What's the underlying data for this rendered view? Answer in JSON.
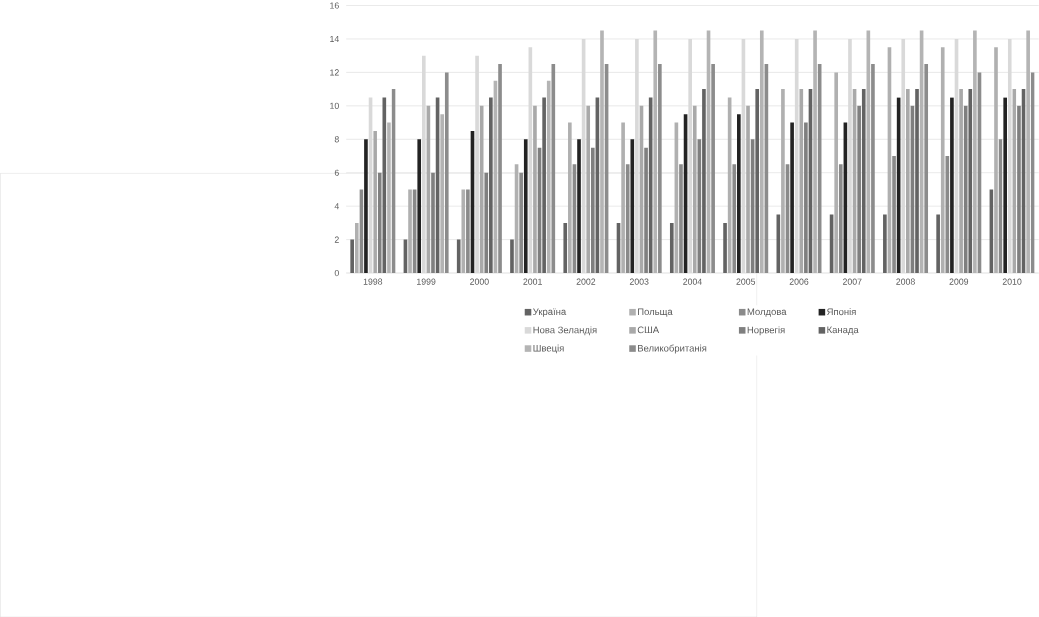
{
  "chart_data": {
    "type": "bar",
    "categories": [
      "1998",
      "1999",
      "2000",
      "2001",
      "2002",
      "2003",
      "2004",
      "2005",
      "2006",
      "2007",
      "2008",
      "2009",
      "2010"
    ],
    "series": [
      {
        "name": "Україна",
        "color": "#636363",
        "values": [
          2,
          2,
          2,
          2,
          3,
          3,
          3,
          3,
          3.5,
          3.5,
          3.5,
          3.5,
          5
        ]
      },
      {
        "name": "Польща",
        "color": "#b0b0b0",
        "values": [
          3,
          5,
          5,
          6.5,
          9,
          9,
          9,
          10.5,
          11,
          12,
          13.5,
          13.5,
          13.5
        ]
      },
      {
        "name": "Молдова",
        "color": "#8a8a8a",
        "values": [
          5,
          5,
          5,
          6,
          6.5,
          6.5,
          6.5,
          6.5,
          6.5,
          6.5,
          7,
          7,
          8
        ]
      },
      {
        "name": "Японія",
        "color": "#232323",
        "values": [
          8,
          8,
          8.5,
          8,
          8,
          8,
          9.5,
          9.5,
          9,
          9,
          10.5,
          10.5,
          10.5
        ]
      },
      {
        "name": "Нова Зеландія",
        "color": "#d9d9d9",
        "values": [
          10.5,
          13,
          13,
          13.5,
          14,
          14,
          14,
          14,
          14,
          14,
          14,
          14,
          14
        ]
      },
      {
        "name": "США",
        "color": "#a9a9a9",
        "values": [
          8.5,
          10,
          10,
          10,
          10,
          10,
          10,
          10,
          11,
          11,
          11,
          11,
          11
        ]
      },
      {
        "name": "Норвегія",
        "color": "#7f7f7f",
        "values": [
          6,
          6,
          6,
          7.5,
          7.5,
          7.5,
          8,
          8,
          9,
          10,
          10,
          10,
          10
        ]
      },
      {
        "name": "Канада",
        "color": "#636363",
        "values": [
          10.5,
          10.5,
          10.5,
          10.5,
          10.5,
          10.5,
          11,
          11,
          11,
          11,
          11,
          11,
          11
        ]
      },
      {
        "name": "Швеція",
        "color": "#b4b4b4",
        "values": [
          9,
          9.5,
          11.5,
          11.5,
          14.5,
          14.5,
          14.5,
          14.5,
          14.5,
          14.5,
          14.5,
          14.5,
          14.5
        ]
      },
      {
        "name": "Великобританія",
        "color": "#8c8c8c",
        "values": [
          11,
          12,
          12.5,
          12.5,
          12.5,
          12.5,
          12.5,
          12.5,
          12.5,
          12.5,
          12.5,
          12,
          12
        ]
      }
    ],
    "ylim": [
      0,
      16
    ],
    "yticks": [
      0,
      2,
      4,
      6,
      8,
      10,
      12,
      14,
      16
    ],
    "grid": "y",
    "legend": "bottom"
  }
}
